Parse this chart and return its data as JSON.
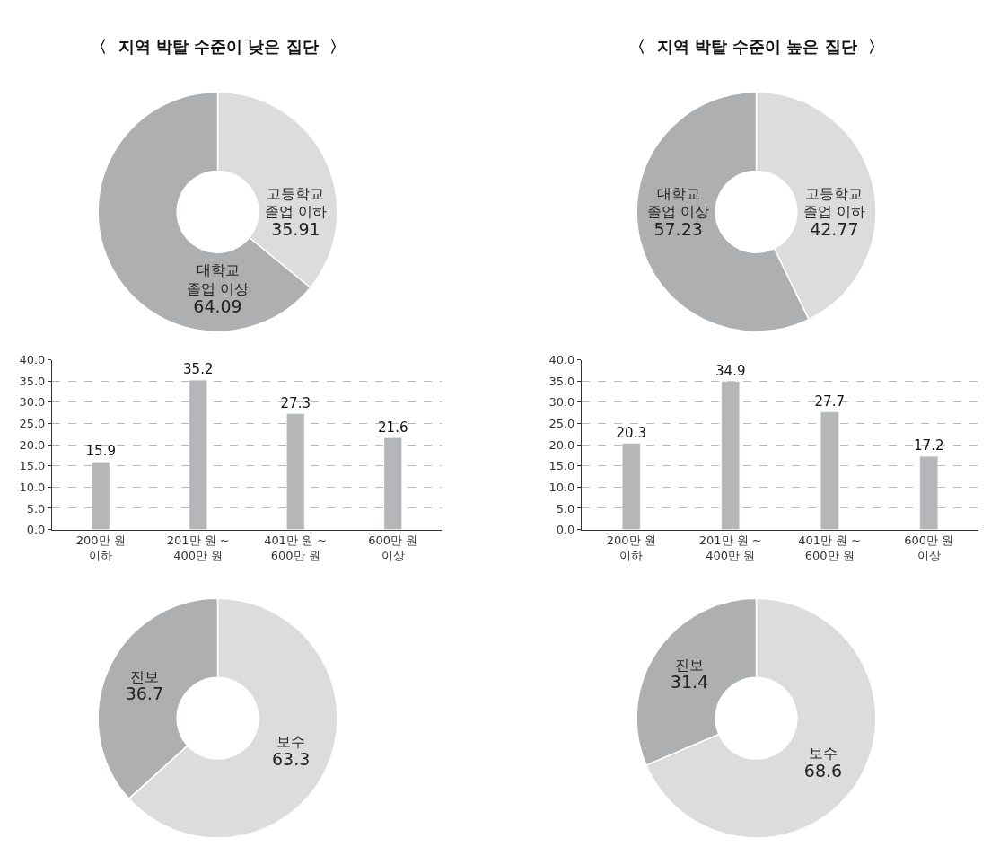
{
  "chart_data": [
    {
      "type": "donut",
      "title": "〈  지역 박탈 수준이 낮은 집단  〉",
      "categories": [
        "고등학교\n졸업 이하",
        "대학교\n졸업 이상"
      ],
      "values": [
        35.91,
        64.09
      ],
      "colors": [
        "#dcdcdd",
        "#aeafb1"
      ],
      "data_labels": true
    },
    {
      "type": "donut",
      "title": "〈  지역 박탈 수준이 높은 집단  〉",
      "categories": [
        "고등학교\n졸업 이하",
        "대학교\n졸업 이상"
      ],
      "values": [
        42.77,
        57.23
      ],
      "colors": [
        "#dcdcdd",
        "#aeafb1"
      ],
      "data_labels": true
    },
    {
      "type": "bar",
      "categories": [
        "200만 원\n이하",
        "201만 원 ~\n400만 원",
        "401만 원 ~\n600만 원",
        "600만 원\n이상"
      ],
      "values": [
        15.9,
        35.2,
        27.3,
        21.6
      ],
      "color": "#b5b6b8",
      "ylim": [
        0,
        40
      ],
      "yticks": [
        {
          "value": 0,
          "label": "0.0"
        },
        {
          "value": 5,
          "label": "5.0"
        },
        {
          "value": 10,
          "label": "10.0"
        },
        {
          "value": 15,
          "label": "15.0"
        },
        {
          "value": 20,
          "label": "20.0"
        },
        {
          "value": 25,
          "label": "25.0"
        },
        {
          "value": 30,
          "label": "30.0"
        },
        {
          "value": 35,
          "label": "35.0"
        },
        {
          "value": 40,
          "label": "40.0"
        }
      ],
      "grid": "y",
      "data_labels": true
    },
    {
      "type": "bar",
      "categories": [
        "200만 원\n이하",
        "201만 원 ~\n400만 원",
        "401만 원 ~\n600만 원",
        "600만 원\n이상"
      ],
      "values": [
        20.3,
        34.9,
        27.7,
        17.2
      ],
      "color": "#b5b6b8",
      "ylim": [
        0,
        40
      ],
      "yticks": [
        {
          "value": 0,
          "label": "0.0"
        },
        {
          "value": 5,
          "label": "5.0"
        },
        {
          "value": 10,
          "label": "10.0"
        },
        {
          "value": 15,
          "label": "15.0"
        },
        {
          "value": 20,
          "label": "20.0"
        },
        {
          "value": 25,
          "label": "25.0"
        },
        {
          "value": 30,
          "label": "30.0"
        },
        {
          "value": 35,
          "label": "35.0"
        },
        {
          "value": 40,
          "label": "40.0"
        }
      ],
      "grid": "y",
      "data_labels": true
    },
    {
      "type": "donut",
      "categories": [
        "보수",
        "진보"
      ],
      "values": [
        63.3,
        36.7
      ],
      "colors": [
        "#dcdcdd",
        "#aeafb1"
      ],
      "data_labels": true
    },
    {
      "type": "donut",
      "categories": [
        "보수",
        "진보"
      ],
      "values": [
        68.6,
        31.4
      ],
      "colors": [
        "#dcdcdd",
        "#aeafb1"
      ],
      "data_labels": true
    }
  ]
}
